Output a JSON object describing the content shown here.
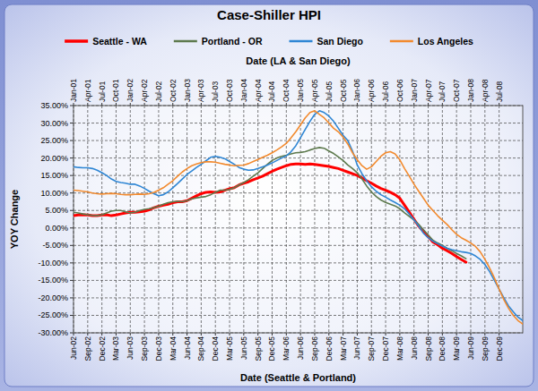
{
  "chart_data": {
    "type": "line",
    "title": "Case-Shiller HPI",
    "x_label": "Date (Seattle & Portland)",
    "x2_label": "Date (LA & San Diego)",
    "y_label": "YOY Change",
    "legend": "top",
    "grid": true,
    "categories": [
      "Jun-02",
      null,
      null,
      "Sep-02",
      null,
      null,
      "Dec-02",
      null,
      null,
      "Mar-03",
      null,
      null,
      "Jun-03",
      null,
      null,
      "Sep-03",
      null,
      null,
      "Dec-03",
      null,
      null,
      "Mar-04",
      null,
      null,
      "Jun-04",
      null,
      null,
      "Sep-04",
      null,
      null,
      "Dec-04",
      null,
      null,
      "Mar-05",
      null,
      null,
      "Jun-05",
      null,
      null,
      "Sep-05",
      null,
      null,
      "Dec-05",
      null,
      null,
      "Mar-06",
      null,
      null,
      "Jun-06",
      null,
      null,
      "Sep-06",
      null,
      null,
      "Dec-06",
      null,
      null,
      "Mar-07",
      null,
      null,
      "Jun-07",
      null,
      null,
      "Sep-07",
      null,
      null,
      "Dec-07",
      null,
      null,
      "Mar-08",
      null,
      null,
      "Jun-08",
      null,
      null,
      "Sep-08",
      null,
      null,
      "Dec-08",
      null,
      null,
      "Mar-09",
      null,
      null,
      "Jun-09",
      null,
      null,
      "Sep-09",
      null,
      null,
      "Dec-09",
      null,
      null,
      null,
      null,
      null
    ],
    "x2_categories": [
      "Jan-01",
      null,
      null,
      "Apr-01",
      null,
      null,
      "Jul-01",
      null,
      null,
      "Oct-01",
      null,
      null,
      "Jan-02",
      null,
      null,
      "Apr-02",
      null,
      null,
      "Jul-02",
      null,
      null,
      "Oct-02",
      null,
      null,
      "Jan-03",
      null,
      null,
      "Apr-03",
      null,
      null,
      "Jul-03",
      null,
      null,
      "Oct-03",
      null,
      null,
      "Jan-04",
      null,
      null,
      "Apr-04",
      null,
      null,
      "Jul-04",
      null,
      null,
      "Oct-04",
      null,
      null,
      "Jan-05",
      null,
      null,
      "Apr-05",
      null,
      null,
      "Jul-05",
      null,
      null,
      "Oct-05",
      null,
      null,
      "Jan-06",
      null,
      null,
      "Apr-06",
      null,
      null,
      "Jul-06",
      null,
      null,
      "Oct-06",
      null,
      null,
      "Jan-07",
      null,
      null,
      "Apr-07",
      null,
      null,
      "Jul-07",
      null,
      null,
      "Oct-07",
      null,
      null,
      "Jan-08",
      null,
      null,
      "Apr-08",
      null,
      null,
      "Jul-08",
      null,
      null,
      null,
      null,
      null
    ],
    "ylim": [
      -30,
      35
    ],
    "yticks": [
      {
        "value": 35,
        "label": "35.00%"
      },
      {
        "value": 30,
        "label": "30.00%"
      },
      {
        "value": 25,
        "label": "25.00%"
      },
      {
        "value": 20,
        "label": "20.00%"
      },
      {
        "value": 15,
        "label": "15.00%"
      },
      {
        "value": 10,
        "label": "10.00%"
      },
      {
        "value": 5,
        "label": "5.00%"
      },
      {
        "value": 0,
        "label": "0.00%"
      },
      {
        "value": -5,
        "label": "-5.00%"
      },
      {
        "value": -10,
        "label": "-10.00%"
      },
      {
        "value": -15,
        "label": "-15.00%"
      },
      {
        "value": -20,
        "label": "-20.00%"
      },
      {
        "value": -25,
        "label": "-25.00%"
      },
      {
        "value": -30,
        "label": "-30.00%"
      }
    ],
    "series": [
      {
        "name": "Seattle - WA",
        "color": "#ff0000",
        "values": [
          3.5,
          3.7,
          3.8,
          3.7,
          3.5,
          3.5,
          3.7,
          3.8,
          3.5,
          3.7,
          4,
          4.3,
          4.5,
          4.5,
          4.6,
          4.8,
          5.2,
          5.8,
          6.2,
          6.5,
          6.8,
          7.2,
          7.5,
          7.5,
          7.8,
          8.5,
          9.2,
          9.8,
          10.2,
          10.3,
          10.2,
          10.3,
          10.8,
          11.2,
          11.5,
          12.3,
          12.8,
          13.2,
          13.8,
          14.3,
          14.8,
          15.5,
          16.2,
          16.8,
          17.3,
          17.8,
          18.2,
          18.3,
          18.3,
          18.2,
          18.3,
          18.2,
          18,
          17.8,
          17.6,
          17.3,
          17,
          16.5,
          16,
          15.5,
          15,
          14.3,
          13.5,
          12.8,
          12,
          11.3,
          10.8,
          10.2,
          9.5,
          8.5,
          6.5,
          4.5,
          2.5,
          0.5,
          -1,
          -2.5,
          -4,
          -4.8,
          -5.8,
          -6.5,
          -7.3,
          -8.2,
          -9,
          -9.8,
          null,
          null,
          null,
          null,
          null,
          null,
          null,
          null,
          null,
          null,
          null,
          null
        ]
      },
      {
        "name": "Portland - OR",
        "color": "#5e7a4e",
        "values": [
          4.5,
          4.3,
          4,
          3.8,
          3.6,
          3.5,
          3.8,
          4.3,
          4.8,
          5,
          5,
          4.6,
          4.3,
          4.5,
          5,
          5.3,
          5.5,
          5.8,
          6.2,
          6.8,
          7.2,
          7.5,
          7.6,
          7.5,
          7.8,
          8.3,
          8.6,
          8.8,
          9,
          9.5,
          10.2,
          10.8,
          10.8,
          11,
          11.5,
          12.3,
          13,
          13.8,
          14.8,
          15.8,
          17,
          18.2,
          19.3,
          20,
          20.5,
          20.8,
          21.2,
          21.5,
          21.6,
          21.8,
          22.3,
          22.7,
          23,
          22.8,
          22,
          21.3,
          20.3,
          19.3,
          18,
          17,
          15.8,
          14,
          12,
          10.3,
          9,
          8,
          7.3,
          6.8,
          6.3,
          5.5,
          4.3,
          3.3,
          2.3,
          1,
          -0.5,
          -2,
          -3.5,
          -4.3,
          -5,
          -5.8,
          -6.5,
          -7.3,
          -8,
          -8.8,
          null,
          null,
          null,
          null,
          null,
          null,
          null,
          null,
          null,
          null,
          null,
          null
        ]
      },
      {
        "name": "San Diego",
        "color": "#2f86d4",
        "axis": "x2",
        "values": [
          17.5,
          17.3,
          17.2,
          17.2,
          17,
          16.5,
          15.8,
          15,
          14,
          13.3,
          13,
          12.8,
          12.5,
          12.5,
          12,
          11.3,
          10.5,
          9.8,
          9.2,
          9.5,
          10.3,
          11.5,
          12.7,
          14,
          15.3,
          16.3,
          17.3,
          18.2,
          19.2,
          20.2,
          20.5,
          20.2,
          19.8,
          19,
          18.2,
          17.3,
          16.8,
          16.5,
          16.6,
          17,
          17.5,
          18,
          18.6,
          19.3,
          20,
          20.6,
          21.8,
          23.5,
          25.8,
          28.2,
          30.5,
          32.5,
          33.5,
          33,
          32,
          30.5,
          28.5,
          26.5,
          25,
          22,
          18,
          15.5,
          13.5,
          11.8,
          10.5,
          9.5,
          8.8,
          8,
          7.3,
          6.5,
          5.5,
          4,
          2.3,
          0.5,
          -1.5,
          -2.8,
          -3.8,
          -4.5,
          -5.2,
          -5.8,
          -6.2,
          -6.5,
          -6.8,
          -7,
          -7.3,
          -8,
          -9,
          -10.5,
          -12.5,
          -15,
          -17.5,
          -20,
          -22.3,
          -24,
          -25.5,
          -26.5
        ]
      },
      {
        "name": "Los Angeles",
        "color": "#f28a2e",
        "axis": "x2",
        "values": [
          10.8,
          10.7,
          10.5,
          10.3,
          10,
          9.8,
          9.7,
          9.8,
          9.9,
          9.8,
          9.6,
          9.5,
          9.5,
          9.6,
          9.7,
          9.6,
          9.8,
          10.2,
          10.8,
          11.5,
          12.5,
          13.5,
          14.8,
          16,
          17,
          17.8,
          18.3,
          18.7,
          18.9,
          18.9,
          18.8,
          18.5,
          18.2,
          18,
          17.8,
          17.9,
          18,
          18.4,
          19,
          19.6,
          20.2,
          20.8,
          21.5,
          22.3,
          23.2,
          24.2,
          25.8,
          27.5,
          29.5,
          31.5,
          33,
          33.5,
          32.5,
          31.5,
          30,
          28.5,
          27.5,
          26,
          24,
          21.5,
          19.5,
          17.8,
          16.8,
          17.5,
          19,
          20.5,
          21.5,
          21.8,
          21.2,
          19.5,
          17,
          14.8,
          12.5,
          10.5,
          8.5,
          6.5,
          5,
          3.5,
          2.2,
          1,
          -0.5,
          -1.8,
          -2.8,
          -3.5,
          -4.3,
          -5.3,
          -6.8,
          -9,
          -11.5,
          -14.3,
          -17.5,
          -20.5,
          -23,
          -25,
          -26.5,
          -27.5
        ]
      }
    ]
  }
}
